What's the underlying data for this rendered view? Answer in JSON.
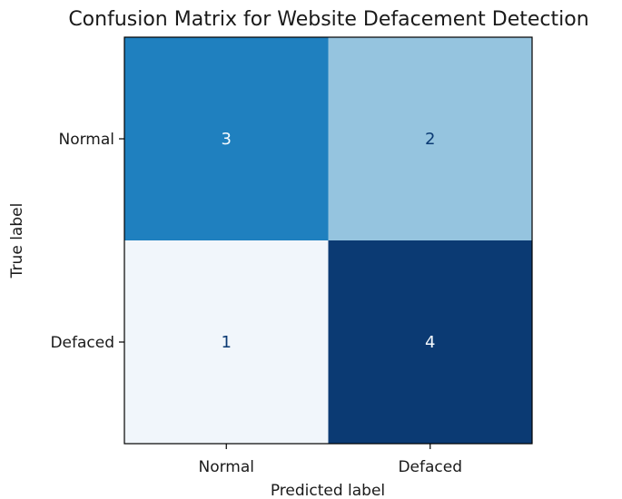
{
  "chart_data": {
    "type": "heatmap",
    "title": "Confusion Matrix for Website Defacement Detection",
    "xlabel": "Predicted label",
    "ylabel": "True label",
    "x_categories": [
      "Normal",
      "Defaced"
    ],
    "y_categories": [
      "Normal",
      "Defaced"
    ],
    "values": [
      [
        3,
        2
      ],
      [
        1,
        4
      ]
    ],
    "colormap": "Blues",
    "value_range": [
      1,
      4
    ],
    "grid": false,
    "colors": {
      "v1": "#f1f6fb",
      "v2": "#95c4df",
      "v3": "#1f80bf",
      "v4": "#0b3a73",
      "text_light": "#f7fbff",
      "text_dark": "#0b3a73"
    }
  }
}
